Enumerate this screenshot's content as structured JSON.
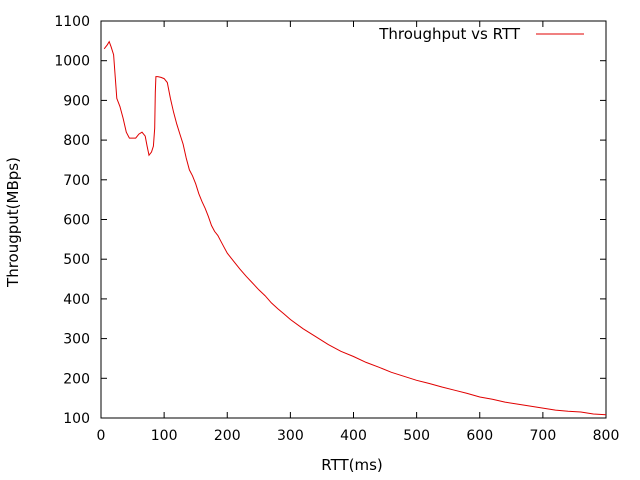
{
  "chart_data": {
    "type": "line",
    "title": "",
    "xlabel": "RTT(ms)",
    "ylabel": "Througput(MBps)",
    "xlim": [
      0,
      800
    ],
    "ylim": [
      100,
      1100
    ],
    "xticks": [
      0,
      100,
      200,
      300,
      400,
      500,
      600,
      700,
      800
    ],
    "yticks": [
      100,
      200,
      300,
      400,
      500,
      600,
      700,
      800,
      900,
      1000,
      1100
    ],
    "grid": false,
    "legend_position": "top-right",
    "line_color": "#e00000",
    "series": [
      {
        "name": "Throughput vs RTT",
        "points": [
          [
            5,
            1030
          ],
          [
            10,
            1040
          ],
          [
            13,
            1048
          ],
          [
            16,
            1035
          ],
          [
            20,
            1015
          ],
          [
            23,
            950
          ],
          [
            25,
            905
          ],
          [
            30,
            885
          ],
          [
            35,
            855
          ],
          [
            40,
            820
          ],
          [
            45,
            805
          ],
          [
            50,
            805
          ],
          [
            55,
            805
          ],
          [
            60,
            815
          ],
          [
            65,
            820
          ],
          [
            70,
            810
          ],
          [
            73,
            785
          ],
          [
            76,
            762
          ],
          [
            80,
            770
          ],
          [
            83,
            785
          ],
          [
            85,
            830
          ],
          [
            86,
            920
          ],
          [
            87,
            960
          ],
          [
            90,
            960
          ],
          [
            95,
            958
          ],
          [
            100,
            955
          ],
          [
            105,
            945
          ],
          [
            110,
            905
          ],
          [
            115,
            870
          ],
          [
            120,
            840
          ],
          [
            125,
            815
          ],
          [
            130,
            790
          ],
          [
            135,
            755
          ],
          [
            140,
            725
          ],
          [
            145,
            710
          ],
          [
            150,
            690
          ],
          [
            155,
            665
          ],
          [
            160,
            645
          ],
          [
            165,
            628
          ],
          [
            170,
            608
          ],
          [
            175,
            585
          ],
          [
            180,
            570
          ],
          [
            185,
            560
          ],
          [
            190,
            545
          ],
          [
            195,
            530
          ],
          [
            200,
            515
          ],
          [
            210,
            495
          ],
          [
            220,
            475
          ],
          [
            230,
            457
          ],
          [
            240,
            440
          ],
          [
            250,
            423
          ],
          [
            260,
            408
          ],
          [
            270,
            390
          ],
          [
            280,
            375
          ],
          [
            290,
            362
          ],
          [
            300,
            348
          ],
          [
            320,
            325
          ],
          [
            340,
            305
          ],
          [
            360,
            285
          ],
          [
            380,
            268
          ],
          [
            400,
            255
          ],
          [
            420,
            240
          ],
          [
            440,
            228
          ],
          [
            460,
            215
          ],
          [
            480,
            205
          ],
          [
            500,
            195
          ],
          [
            520,
            187
          ],
          [
            540,
            178
          ],
          [
            560,
            170
          ],
          [
            580,
            162
          ],
          [
            600,
            153
          ],
          [
            620,
            147
          ],
          [
            640,
            140
          ],
          [
            660,
            135
          ],
          [
            680,
            130
          ],
          [
            700,
            125
          ],
          [
            720,
            120
          ],
          [
            740,
            117
          ],
          [
            760,
            115
          ],
          [
            780,
            110
          ],
          [
            800,
            108
          ]
        ]
      }
    ]
  }
}
